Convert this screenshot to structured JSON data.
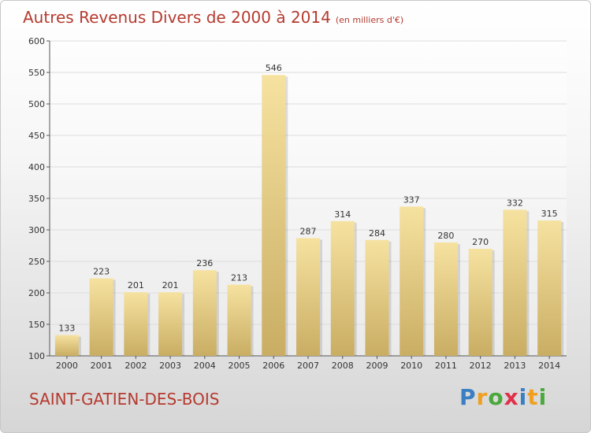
{
  "header": {
    "title": "Autres Revenus Divers de 2000 à 2014",
    "subtitle": "(en milliers d'€)"
  },
  "footer": {
    "commune": "SAINT-GATIEN-DES-BOIS",
    "logo_parts": [
      "P",
      "r",
      "o",
      "x",
      "i",
      "t",
      "i"
    ],
    "logo_colors": [
      "#3a7fc4",
      "#f0a020",
      "#4aa83c",
      "#e0304a",
      "#3a7fc4",
      "#f0a020",
      "#4aa83c"
    ]
  },
  "colors": {
    "title": "#b53a2f",
    "bar_top": "#f6e2a0",
    "bar_bottom": "#c9ad63",
    "grid": "#dddddd"
  },
  "chart_data": {
    "type": "bar",
    "title": "Autres Revenus Divers de 2000 à 2014",
    "subtitle": "(en milliers d'€)",
    "categories": [
      "2000",
      "2001",
      "2002",
      "2003",
      "2004",
      "2005",
      "2006",
      "2007",
      "2008",
      "2009",
      "2010",
      "2011",
      "2012",
      "2013",
      "2014"
    ],
    "values": [
      133,
      223,
      201,
      201,
      236,
      213,
      546,
      287,
      314,
      284,
      337,
      280,
      270,
      332,
      315
    ],
    "ylim": [
      100,
      600
    ],
    "yticks": [
      100,
      150,
      200,
      250,
      300,
      350,
      400,
      450,
      500,
      550,
      600
    ],
    "grid": true,
    "xlabel": "",
    "ylabel": ""
  }
}
